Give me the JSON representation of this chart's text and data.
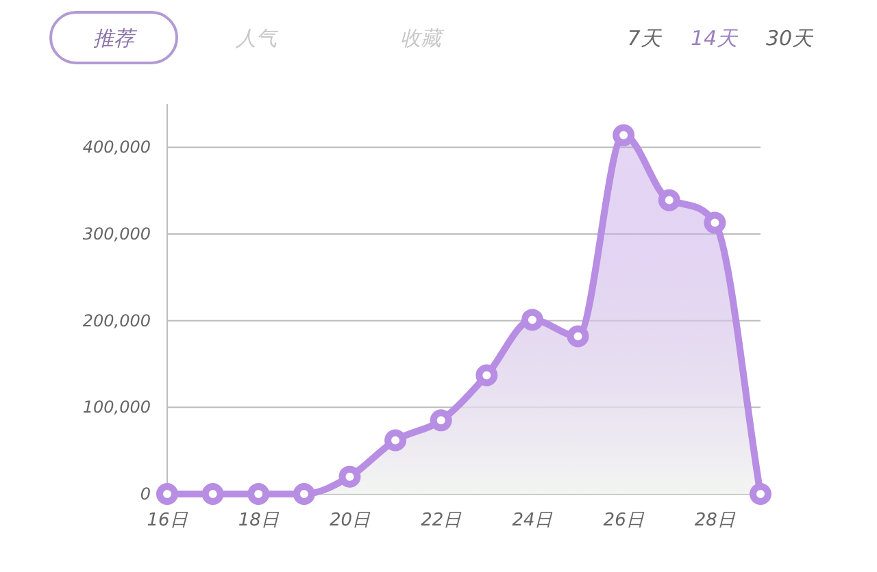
{
  "chart_data": {
    "type": "area",
    "categories": [
      "16日",
      null,
      "18日",
      null,
      "20日",
      null,
      "22日",
      null,
      "24日",
      null,
      "26日",
      null,
      "28日",
      null
    ],
    "series": [
      {
        "color": "#b78ee3",
        "values": [
          0,
          0,
          0,
          0,
          20000,
          62000,
          85000,
          137000,
          201000,
          182000,
          414000,
          339000,
          313000,
          0
        ]
      }
    ],
    "ylim": [
      0,
      450000
    ],
    "yticks": [
      0,
      {
        "value": 100000,
        "label": "100,000"
      },
      {
        "value": 200000,
        "label": "200,000"
      },
      {
        "value": 300000,
        "label": "300,000"
      },
      {
        "value": 400000,
        "label": "400,000"
      }
    ],
    "grid": "y",
    "marker": "circle",
    "annotations": [
      "推荐",
      "人气",
      "收藏",
      "7天",
      "14天",
      "30天"
    ]
  }
}
